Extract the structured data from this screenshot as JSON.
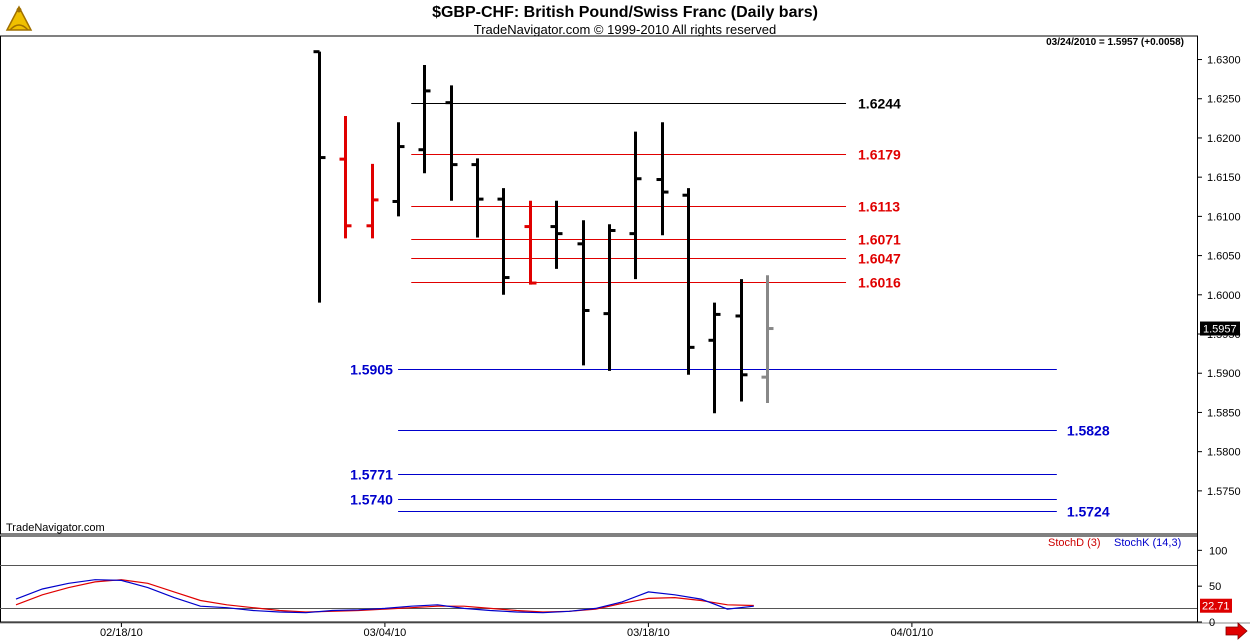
{
  "title": "$GBP-CHF:  British Pound/Swiss Franc  (Daily bars)",
  "subtitle": "TradeNavigator.com © 1999-2010 All rights reserved",
  "last_quote": "03/24/2010 = 1.5957 (+0.0058)",
  "brand": "TradeNavigator.com",
  "icons": {
    "logo": "sextant-logo-icon",
    "scroll": "right-arrow-icon"
  },
  "colors": {
    "up_bar": "#000000",
    "down_bar": "#e00000",
    "last_bar": "#888888",
    "resistance": "#e00000",
    "support": "#0000cc",
    "stoch_d": "#cc0000",
    "stoch_k": "#0000cc"
  },
  "chart_data": [
    {
      "type": "ohlc",
      "title": "$GBP-CHF:  British Pound/Swiss Franc  (Daily bars)",
      "y_ticks": [
        "1.6300",
        "1.6250",
        "1.6200",
        "1.6150",
        "1.6100",
        "1.6050",
        "1.6000",
        "1.5950",
        "1.5900",
        "1.5850",
        "1.5800",
        "1.5750"
      ],
      "ylim": [
        1.5695,
        1.633
      ],
      "x_ticks": [
        {
          "label": "02/18/10",
          "idx": 4
        },
        {
          "label": "03/04/10",
          "idx": 14
        },
        {
          "label": "03/18/10",
          "idx": 24
        },
        {
          "label": "04/01/10",
          "idx": 34
        }
      ],
      "last_price_label": "1.5957",
      "bars": [
        {
          "idx": 11.5,
          "o": 1.631,
          "h": 1.631,
          "l": 1.599,
          "c": 1.6175,
          "color": "black"
        },
        {
          "idx": 12.5,
          "o": 1.6173,
          "h": 1.6228,
          "l": 1.6072,
          "c": 1.6088,
          "color": "red"
        },
        {
          "idx": 13.5,
          "o": 1.6088,
          "h": 1.6167,
          "l": 1.6072,
          "c": 1.6121,
          "color": "red"
        },
        {
          "idx": 14.5,
          "o": 1.6119,
          "h": 1.622,
          "l": 1.61,
          "c": 1.6189,
          "color": "black"
        },
        {
          "idx": 15.5,
          "o": 1.6185,
          "h": 1.6293,
          "l": 1.6155,
          "c": 1.626,
          "color": "black"
        },
        {
          "idx": 16.5,
          "o": 1.6245,
          "h": 1.6267,
          "l": 1.612,
          "c": 1.6166,
          "color": "black"
        },
        {
          "idx": 17.5,
          "o": 1.6166,
          "h": 1.6174,
          "l": 1.6073,
          "c": 1.6122,
          "color": "black"
        },
        {
          "idx": 18.5,
          "o": 1.6122,
          "h": 1.6136,
          "l": 1.6,
          "c": 1.6022,
          "color": "black"
        },
        {
          "idx": 19.5,
          "o": 1.6087,
          "h": 1.612,
          "l": 1.6013,
          "c": 1.6015,
          "color": "red"
        },
        {
          "idx": 20.5,
          "o": 1.6087,
          "h": 1.612,
          "l": 1.6033,
          "c": 1.6078,
          "color": "black"
        },
        {
          "idx": 21.5,
          "o": 1.6065,
          "h": 1.6095,
          "l": 1.591,
          "c": 1.598,
          "color": "black"
        },
        {
          "idx": 22.5,
          "o": 1.5976,
          "h": 1.609,
          "l": 1.5903,
          "c": 1.6082,
          "color": "black"
        },
        {
          "idx": 23.5,
          "o": 1.6078,
          "h": 1.6208,
          "l": 1.602,
          "c": 1.6148,
          "color": "black"
        },
        {
          "idx": 24.5,
          "o": 1.6147,
          "h": 1.622,
          "l": 1.6076,
          "c": 1.6131,
          "color": "black"
        },
        {
          "idx": 25.5,
          "o": 1.6127,
          "h": 1.6136,
          "l": 1.5898,
          "c": 1.5933,
          "color": "black"
        },
        {
          "idx": 26.5,
          "o": 1.5942,
          "h": 1.599,
          "l": 1.5849,
          "c": 1.5975,
          "color": "black"
        },
        {
          "idx": 27.5,
          "o": 1.5973,
          "h": 1.602,
          "l": 1.5864,
          "c": 1.5898,
          "color": "black"
        },
        {
          "idx": 28.5,
          "o": 1.5895,
          "h": 1.6025,
          "l": 1.5862,
          "c": 1.5957,
          "color": "gray"
        }
      ],
      "levels": [
        {
          "value": 1.6244,
          "label": "1.6244",
          "color": "black",
          "from_idx": 15.0,
          "to_idx": 31.5,
          "label_side": "right"
        },
        {
          "value": 1.6179,
          "label": "1.6179",
          "color": "red",
          "from_idx": 15.0,
          "to_idx": 31.5,
          "label_side": "right"
        },
        {
          "value": 1.6113,
          "label": "1.6113",
          "color": "red",
          "from_idx": 15.0,
          "to_idx": 31.5,
          "label_side": "right"
        },
        {
          "value": 1.6071,
          "label": "1.6071",
          "color": "red",
          "from_idx": 15.0,
          "to_idx": 31.5,
          "label_side": "right"
        },
        {
          "value": 1.6047,
          "label": "1.6047",
          "color": "red",
          "from_idx": 15.0,
          "to_idx": 31.5,
          "label_side": "right"
        },
        {
          "value": 1.6016,
          "label": "1.6016",
          "color": "red",
          "from_idx": 15.0,
          "to_idx": 31.5,
          "label_side": "right"
        },
        {
          "value": 1.5905,
          "label": "1.5905",
          "color": "blue",
          "from_idx": 14.5,
          "to_idx": 39.5,
          "label_side": "left"
        },
        {
          "value": 1.5828,
          "label": "1.5828",
          "color": "blue",
          "from_idx": 14.5,
          "to_idx": 39.5,
          "label_side": "right"
        },
        {
          "value": 1.5771,
          "label": "1.5771",
          "color": "blue",
          "from_idx": 14.5,
          "to_idx": 39.5,
          "label_side": "left"
        },
        {
          "value": 1.574,
          "label": "1.5740",
          "color": "blue",
          "from_idx": 14.5,
          "to_idx": 39.5,
          "label_side": "left"
        },
        {
          "value": 1.5724,
          "label": "1.5724",
          "color": "blue",
          "from_idx": 14.5,
          "to_idx": 39.5,
          "label_side": "right"
        }
      ]
    },
    {
      "type": "line",
      "title": "",
      "y_ticks": [
        "100",
        "50",
        "0"
      ],
      "ylim": [
        0,
        120
      ],
      "ref_lines": [
        80,
        20
      ],
      "last_value_label": "22.71",
      "series": [
        {
          "name": "StochD (3)",
          "color": "red",
          "points": [
            [
              0,
              24
            ],
            [
              1,
              38
            ],
            [
              2,
              48
            ],
            [
              3,
              56
            ],
            [
              4,
              59
            ],
            [
              5,
              54
            ],
            [
              6,
              42
            ],
            [
              7,
              30
            ],
            [
              8,
              24
            ],
            [
              9,
              20
            ],
            [
              10,
              16
            ],
            [
              11,
              14
            ],
            [
              12,
              15
            ],
            [
              13,
              16
            ],
            [
              14,
              18
            ],
            [
              15,
              20
            ],
            [
              16,
              22
            ],
            [
              17,
              22
            ],
            [
              18,
              19
            ],
            [
              19,
              16
            ],
            [
              20,
              14
            ],
            [
              21,
              15
            ],
            [
              22,
              18
            ],
            [
              23,
              26
            ],
            [
              24,
              33
            ],
            [
              25,
              34
            ],
            [
              26,
              30
            ],
            [
              27,
              24
            ],
            [
              28,
              23
            ]
          ]
        },
        {
          "name": "StochK (14,3)",
          "color": "blue",
          "points": [
            [
              0,
              32
            ],
            [
              1,
              46
            ],
            [
              2,
              54
            ],
            [
              3,
              59
            ],
            [
              4,
              58
            ],
            [
              5,
              48
            ],
            [
              6,
              34
            ],
            [
              7,
              22
            ],
            [
              8,
              20
            ],
            [
              9,
              16
            ],
            [
              10,
              14
            ],
            [
              11,
              13
            ],
            [
              12,
              16
            ],
            [
              13,
              17
            ],
            [
              14,
              19
            ],
            [
              15,
              22
            ],
            [
              16,
              24
            ],
            [
              17,
              19
            ],
            [
              18,
              16
            ],
            [
              19,
              14
            ],
            [
              20,
              13
            ],
            [
              21,
              15
            ],
            [
              22,
              19
            ],
            [
              23,
              28
            ],
            [
              24,
              42
            ],
            [
              25,
              38
            ],
            [
              26,
              32
            ],
            [
              27,
              18
            ],
            [
              28,
              22
            ]
          ]
        }
      ]
    }
  ]
}
